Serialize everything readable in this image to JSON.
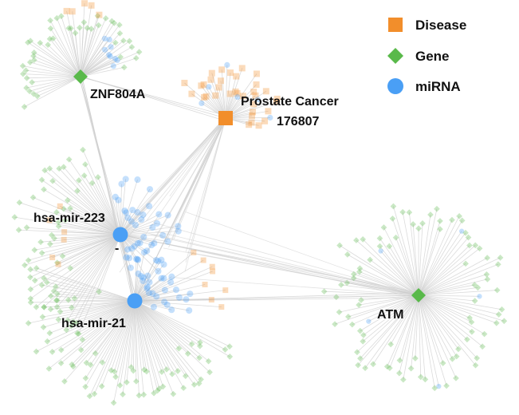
{
  "legend": [
    {
      "label": "Disease",
      "shape": "square",
      "color": "#f28e2b"
    },
    {
      "label": "Gene",
      "shape": "diamond",
      "color": "#59b94a"
    },
    {
      "label": "miRNA",
      "shape": "circle",
      "color": "#4a9ff5"
    }
  ],
  "hubs": [
    {
      "id": "znf804a",
      "type": "Gene",
      "lines": [
        "ZNF804A"
      ]
    },
    {
      "id": "prostate",
      "type": "Disease",
      "lines": [
        "Prostate Cancer",
        "176807"
      ]
    },
    {
      "id": "mir223",
      "type": "miRNA",
      "lines": [
        "hsa-mir-223",
        "-"
      ]
    },
    {
      "id": "mir21",
      "type": "miRNA",
      "lines": [
        "hsa-mir-21"
      ]
    },
    {
      "id": "atm",
      "type": "Gene",
      "lines": [
        "ATM"
      ]
    }
  ],
  "colors": {
    "disease": "#f28e2b",
    "gene": "#59b94a",
    "mirna": "#4a9ff5",
    "edge": "#cfcfcf"
  }
}
